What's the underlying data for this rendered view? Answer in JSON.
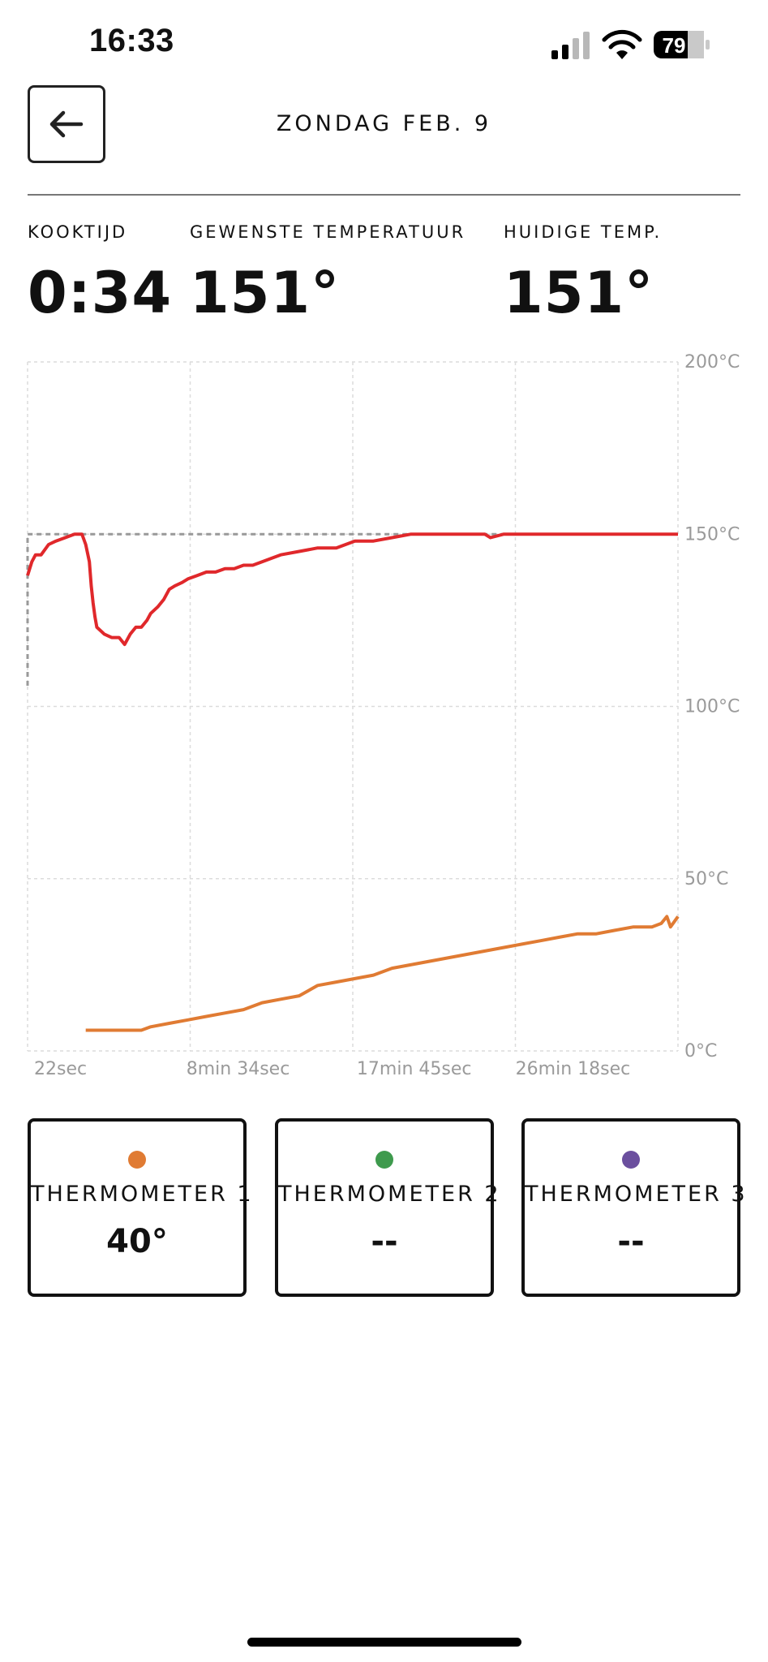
{
  "status_bar": {
    "time": "16:33",
    "battery": "79"
  },
  "header": {
    "back_icon": "arrow-left-icon",
    "title": "ZONDAG FEB. 9"
  },
  "stats": {
    "cook_time": {
      "label": "KOOKTIJD",
      "value": "0:34"
    },
    "target_temp": {
      "label": "GEWENSTE TEMPERATUUR",
      "value": "151°"
    },
    "current_temp": {
      "label": "HUIDIGE TEMP.",
      "value": "151°"
    }
  },
  "chart_data": {
    "type": "line",
    "x_unit": "minutes",
    "xlim": [
      0.37,
      35.4
    ],
    "ylim": [
      0,
      200
    ],
    "grid": true,
    "legend": "none",
    "x_tick_labels": [
      {
        "x": 0.37,
        "label": "22sec"
      },
      {
        "x": 8.57,
        "label": "8min 34sec"
      },
      {
        "x": 17.75,
        "label": "17min 45sec"
      },
      {
        "x": 26.3,
        "label": "26min 18sec"
      }
    ],
    "y_ticks": [
      200,
      150,
      100,
      50,
      0
    ],
    "y_tick_labels": [
      "200°C",
      "150°C",
      "100°C",
      "50°C",
      "0°C"
    ],
    "target_line": {
      "value": 150,
      "color": "#999999",
      "start_value": 106
    },
    "series": [
      {
        "color": "#e0282b",
        "x": [
          0.37,
          0.6,
          0.8,
          1.1,
          1.5,
          1.9,
          2.4,
          2.9,
          3.3,
          3.5,
          3.7,
          3.8,
          3.9,
          4.0,
          4.1,
          4.3,
          4.5,
          4.9,
          5.1,
          5.3,
          5.6,
          5.9,
          6.2,
          6.5,
          6.8,
          7.0,
          7.4,
          7.7,
          8.0,
          8.3,
          8.7,
          9.0,
          9.5,
          10.0,
          10.5,
          11.0,
          11.5,
          12.0,
          12.5,
          13.0,
          13.5,
          14.0,
          15.0,
          16.0,
          17.0,
          18.0,
          19.0,
          20.0,
          21.0,
          21.5,
          23.0,
          24.0,
          25.0,
          25.3,
          26.0,
          28.0,
          30.0,
          33.0,
          35.4
        ],
        "values": [
          138,
          142,
          144,
          144,
          147,
          148,
          149,
          150,
          150,
          147,
          142,
          135,
          130,
          126,
          123,
          122,
          121,
          120,
          120,
          120,
          118,
          121,
          123,
          123,
          125,
          127,
          129,
          131,
          134,
          135,
          136,
          137,
          138,
          139,
          139,
          140,
          140,
          141,
          141,
          142,
          143,
          144,
          145,
          146,
          146,
          148,
          148,
          149,
          150,
          150,
          150,
          150,
          150,
          149,
          150,
          150,
          150,
          150,
          150
        ]
      },
      {
        "color": "#e07b33",
        "x": [
          3.5,
          4.5,
          5.5,
          6.5,
          7.0,
          8.0,
          9.0,
          10.0,
          11.0,
          12.0,
          13.0,
          14.0,
          15.0,
          16.0,
          17.0,
          18.0,
          19.0,
          20.0,
          21.0,
          22.0,
          23.0,
          24.0,
          25.0,
          26.0,
          27.0,
          28.0,
          29.0,
          30.0,
          31.0,
          32.0,
          33.0,
          34.0,
          34.5,
          34.8,
          35.0,
          35.4
        ],
        "values": [
          6,
          6,
          6,
          6,
          7,
          8,
          9,
          10,
          11,
          12,
          14,
          15,
          16,
          19,
          20,
          21,
          22,
          24,
          25,
          26,
          27,
          28,
          29,
          30,
          31,
          32,
          33,
          34,
          34,
          35,
          36,
          36,
          37,
          39,
          36,
          39
        ]
      }
    ]
  },
  "thermometers": [
    {
      "name": "THERMOMETER 1",
      "reading": "40°",
      "color": "#e07b33"
    },
    {
      "name": "THERMOMETER 2",
      "reading": "--",
      "color": "#3e9a4d"
    },
    {
      "name": "THERMOMETER 3",
      "reading": "--",
      "color": "#6b4f9e"
    }
  ]
}
